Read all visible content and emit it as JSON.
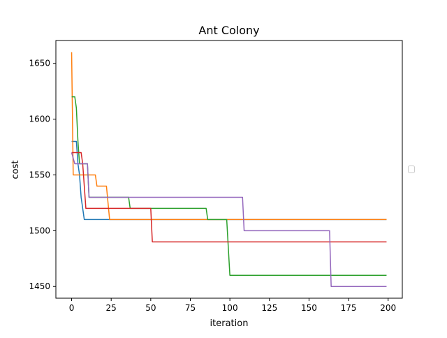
{
  "chart_data": {
    "type": "line",
    "title": "Ant Colony",
    "xlabel": "iteration",
    "ylabel": "cost",
    "xlim": [
      -9.95,
      208.95
    ],
    "ylim": [
      1439.5,
      1670.5
    ],
    "xticks": [
      0,
      25,
      50,
      75,
      100,
      125,
      150,
      175,
      200
    ],
    "yticks": [
      1450,
      1500,
      1550,
      1600,
      1650
    ],
    "grid": false,
    "legend": "empty legend box, right side",
    "series": [
      {
        "color": "#1f77b4",
        "steps": [
          [
            0,
            1580
          ],
          [
            3,
            1580
          ],
          [
            4,
            1560
          ],
          [
            5,
            1550
          ],
          [
            6,
            1530
          ],
          [
            7,
            1520
          ],
          [
            8,
            1510
          ],
          [
            199,
            1510
          ]
        ]
      },
      {
        "color": "#ff7f0e",
        "steps": [
          [
            0,
            1660
          ],
          [
            1,
            1550
          ],
          [
            8,
            1550
          ],
          [
            9,
            1550
          ],
          [
            15,
            1550
          ],
          [
            16,
            1540
          ],
          [
            22,
            1540
          ],
          [
            24,
            1510
          ],
          [
            199,
            1510
          ]
        ]
      },
      {
        "color": "#2ca02c",
        "steps": [
          [
            0,
            1620
          ],
          [
            2,
            1620
          ],
          [
            3,
            1610
          ],
          [
            4,
            1580
          ],
          [
            5,
            1560
          ],
          [
            7,
            1560
          ],
          [
            10,
            1560
          ],
          [
            11,
            1530
          ],
          [
            36,
            1530
          ],
          [
            37,
            1520
          ],
          [
            85,
            1520
          ],
          [
            86,
            1510
          ],
          [
            98,
            1510
          ],
          [
            100,
            1460
          ],
          [
            199,
            1460
          ]
        ]
      },
      {
        "color": "#d62728",
        "steps": [
          [
            0,
            1570
          ],
          [
            6,
            1570
          ],
          [
            7,
            1560
          ],
          [
            8,
            1540
          ],
          [
            9,
            1520
          ],
          [
            50,
            1520
          ],
          [
            51,
            1490
          ],
          [
            199,
            1490
          ]
        ]
      },
      {
        "color": "#9467bd",
        "steps": [
          [
            0,
            1570
          ],
          [
            2,
            1560
          ],
          [
            10,
            1560
          ],
          [
            11,
            1530
          ],
          [
            108,
            1530
          ],
          [
            109,
            1500
          ],
          [
            163,
            1500
          ],
          [
            164,
            1450
          ],
          [
            199,
            1450
          ]
        ]
      }
    ]
  }
}
